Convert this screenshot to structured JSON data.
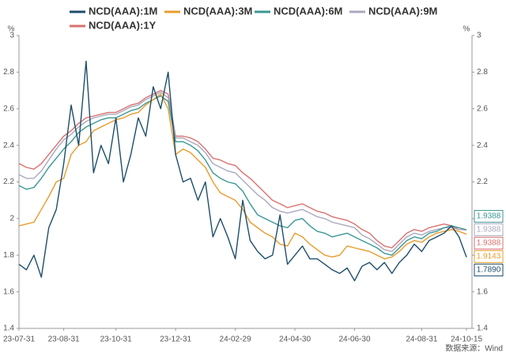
{
  "chart_data": {
    "type": "line",
    "y_unit": "%",
    "y2_unit": "%",
    "source": "数据来源：Wind",
    "legend": "top",
    "categories": [
      "23-07-31",
      null,
      null,
      null,
      null,
      null,
      "23-08-31",
      null,
      null,
      null,
      null,
      null,
      null,
      "23-10-31",
      null,
      null,
      null,
      null,
      null,
      null,
      null,
      "23-12-31",
      null,
      null,
      null,
      null,
      null,
      null,
      null,
      "24-02-29",
      null,
      null,
      null,
      null,
      null,
      null,
      null,
      "24-04-30",
      null,
      null,
      null,
      null,
      null,
      null,
      null,
      "24-06-30",
      null,
      null,
      null,
      null,
      null,
      null,
      null,
      null,
      "24-08-31",
      null,
      null,
      null,
      null,
      null,
      "24-10-15"
    ],
    "ylim": [
      1.4,
      3
    ],
    "yticks": [
      1.4,
      1.6,
      1.8,
      2,
      2.2,
      2.4,
      2.6,
      2.8,
      3
    ],
    "y2lim": [
      1.4,
      3
    ],
    "y2ticks": [
      1.4,
      1.6,
      1.8,
      2,
      2.2,
      2.4,
      2.6,
      2.8,
      3
    ],
    "series": [
      {
        "name": "NCD(AAA):1M",
        "color": "#1d4e6b",
        "end_label": "1.7890",
        "values": [
          1.75,
          1.72,
          1.8,
          1.68,
          1.95,
          2.05,
          2.3,
          2.62,
          2.4,
          2.86,
          2.25,
          2.4,
          2.3,
          2.55,
          2.2,
          2.35,
          2.55,
          2.45,
          2.72,
          2.6,
          2.8,
          2.35,
          2.2,
          2.22,
          2.1,
          2.2,
          1.9,
          2.0,
          1.9,
          1.78,
          2.1,
          1.88,
          1.82,
          1.78,
          1.8,
          2.02,
          1.75,
          1.8,
          1.85,
          1.78,
          1.78,
          1.75,
          1.72,
          1.7,
          1.73,
          1.66,
          1.74,
          1.76,
          1.72,
          1.76,
          1.7,
          1.76,
          1.8,
          1.86,
          1.82,
          1.88,
          1.9,
          1.92,
          1.96,
          1.9,
          1.789
        ]
      },
      {
        "name": "NCD(AAA):3M",
        "color": "#e89c2c",
        "end_label": "1.9143",
        "values": [
          1.96,
          1.97,
          1.98,
          2.05,
          2.12,
          2.2,
          2.22,
          2.35,
          2.4,
          2.42,
          2.48,
          2.5,
          2.52,
          2.54,
          2.55,
          2.57,
          2.58,
          2.62,
          2.65,
          2.68,
          2.6,
          2.35,
          2.38,
          2.36,
          2.32,
          2.28,
          2.2,
          2.14,
          2.12,
          2.1,
          2.05,
          1.98,
          1.95,
          1.92,
          1.9,
          1.86,
          1.85,
          1.92,
          1.9,
          1.86,
          1.83,
          1.8,
          1.79,
          1.8,
          1.85,
          1.84,
          1.83,
          1.82,
          1.8,
          1.78,
          1.79,
          1.82,
          1.86,
          1.88,
          1.87,
          1.9,
          1.92,
          1.93,
          1.94,
          1.93,
          1.9143
        ]
      },
      {
        "name": "NCD(AAA):6M",
        "color": "#3a9893",
        "end_label": "1.9388",
        "values": [
          2.18,
          2.16,
          2.17,
          2.22,
          2.28,
          2.33,
          2.38,
          2.42,
          2.47,
          2.5,
          2.52,
          2.54,
          2.55,
          2.55,
          2.57,
          2.59,
          2.6,
          2.63,
          2.65,
          2.67,
          2.64,
          2.42,
          2.42,
          2.4,
          2.37,
          2.32,
          2.25,
          2.22,
          2.2,
          2.19,
          2.15,
          2.08,
          2.02,
          2.0,
          1.98,
          1.96,
          1.95,
          1.99,
          2.0,
          1.96,
          1.93,
          1.92,
          1.9,
          1.91,
          1.92,
          1.9,
          1.88,
          1.86,
          1.84,
          1.81,
          1.8,
          1.84,
          1.88,
          1.9,
          1.89,
          1.92,
          1.93,
          1.95,
          1.96,
          1.95,
          1.9388
        ]
      },
      {
        "name": "NCD(AAA):9M",
        "color": "#aaa8bf",
        "end_label": "1.9388",
        "values": [
          2.24,
          2.22,
          2.22,
          2.26,
          2.32,
          2.38,
          2.43,
          2.46,
          2.5,
          2.53,
          2.55,
          2.56,
          2.57,
          2.57,
          2.59,
          2.61,
          2.62,
          2.65,
          2.67,
          2.69,
          2.66,
          2.44,
          2.44,
          2.42,
          2.4,
          2.36,
          2.3,
          2.28,
          2.26,
          2.25,
          2.21,
          2.17,
          2.13,
          2.1,
          2.06,
          2.04,
          2.03,
          2.04,
          2.05,
          2.03,
          2.01,
          2.0,
          1.98,
          1.97,
          1.96,
          1.95,
          1.91,
          1.89,
          1.86,
          1.83,
          1.82,
          1.86,
          1.9,
          1.92,
          1.91,
          1.93,
          1.94,
          1.95,
          1.95,
          1.94,
          1.9388
        ]
      },
      {
        "name": "NCD(AAA):1Y",
        "color": "#d8716f",
        "end_label": "1.9388",
        "values": [
          2.3,
          2.28,
          2.27,
          2.3,
          2.35,
          2.4,
          2.45,
          2.48,
          2.52,
          2.55,
          2.56,
          2.57,
          2.58,
          2.58,
          2.6,
          2.62,
          2.63,
          2.66,
          2.68,
          2.7,
          2.68,
          2.45,
          2.45,
          2.44,
          2.42,
          2.38,
          2.33,
          2.32,
          2.3,
          2.29,
          2.25,
          2.22,
          2.18,
          2.14,
          2.1,
          2.08,
          2.06,
          2.07,
          2.08,
          2.06,
          2.04,
          2.03,
          2.01,
          2.0,
          1.99,
          1.97,
          1.94,
          1.92,
          1.88,
          1.85,
          1.84,
          1.88,
          1.92,
          1.94,
          1.93,
          1.95,
          1.96,
          1.97,
          1.96,
          1.94,
          1.9388
        ]
      }
    ]
  }
}
